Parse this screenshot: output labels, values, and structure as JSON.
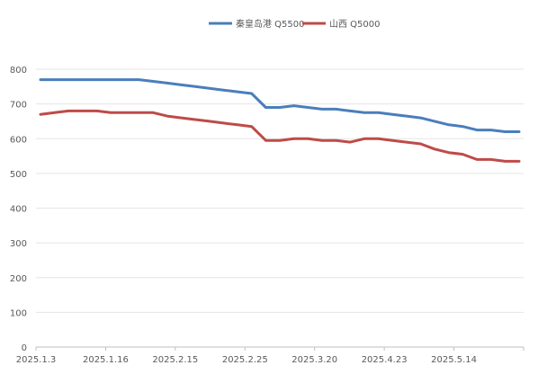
{
  "chart_data": {
    "type": "line",
    "title": "",
    "xlabel": "",
    "ylabel": "",
    "ylim": [
      0,
      800
    ],
    "yticks": [
      0,
      100,
      200,
      300,
      400,
      500,
      600,
      700,
      800
    ],
    "grid": true,
    "legend": "top-center",
    "xtick_labels": [
      "2025.1.3",
      "2025.1.16",
      "2025.2.15",
      "2025.2.25",
      "2025.3.20",
      "2025.4.23",
      "2025.5.14"
    ],
    "series": [
      {
        "name": "秦皇岛港 Q5500",
        "color": "#4a7ebb",
        "values": [
          770,
          770,
          770,
          770,
          770,
          770,
          770,
          770,
          765,
          760,
          755,
          750,
          745,
          740,
          735,
          730,
          690,
          690,
          695,
          690,
          685,
          685,
          680,
          675,
          675,
          670,
          665,
          660,
          650,
          640,
          635,
          625,
          625,
          620,
          620
        ]
      },
      {
        "name": "山西 Q5000",
        "color": "#be4b48",
        "values": [
          670,
          675,
          680,
          680,
          680,
          675,
          675,
          675,
          675,
          665,
          660,
          655,
          650,
          645,
          640,
          635,
          595,
          595,
          600,
          600,
          595,
          595,
          590,
          600,
          600,
          595,
          590,
          585,
          570,
          560,
          555,
          540,
          540,
          535,
          535
        ]
      }
    ]
  }
}
